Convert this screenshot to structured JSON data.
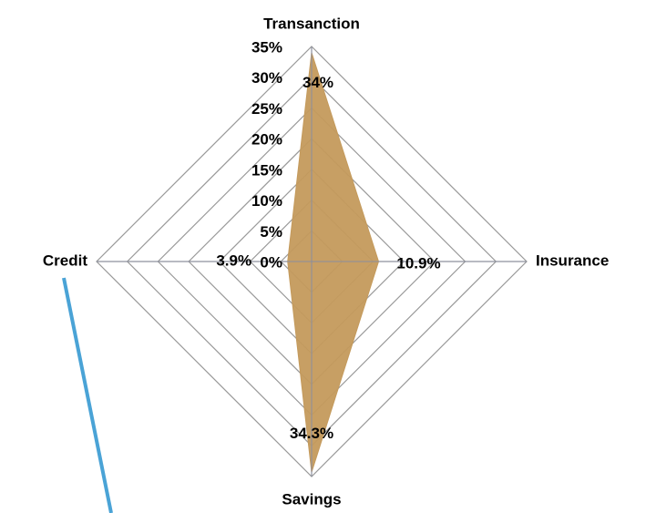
{
  "chart_data": {
    "type": "radar",
    "categories": [
      "Transanction",
      "Insurance",
      "Savings",
      "Credit"
    ],
    "values": [
      34,
      10.9,
      34.3,
      3.9
    ],
    "value_labels": [
      "34%",
      "10.9%",
      "34.3%",
      "3.9%"
    ],
    "color": "#c49a5c",
    "ylim": [
      0,
      35
    ],
    "yticks": [
      {
        "value": 0,
        "label": "0%"
      },
      {
        "value": 5,
        "label": "5%"
      },
      {
        "value": 10,
        "label": "10%"
      },
      {
        "value": 15,
        "label": "15%"
      },
      {
        "value": 20,
        "label": "20%"
      },
      {
        "value": 25,
        "label": "25%"
      },
      {
        "value": 30,
        "label": "30%"
      },
      {
        "value": 35,
        "label": "35%"
      }
    ],
    "grid": true
  }
}
